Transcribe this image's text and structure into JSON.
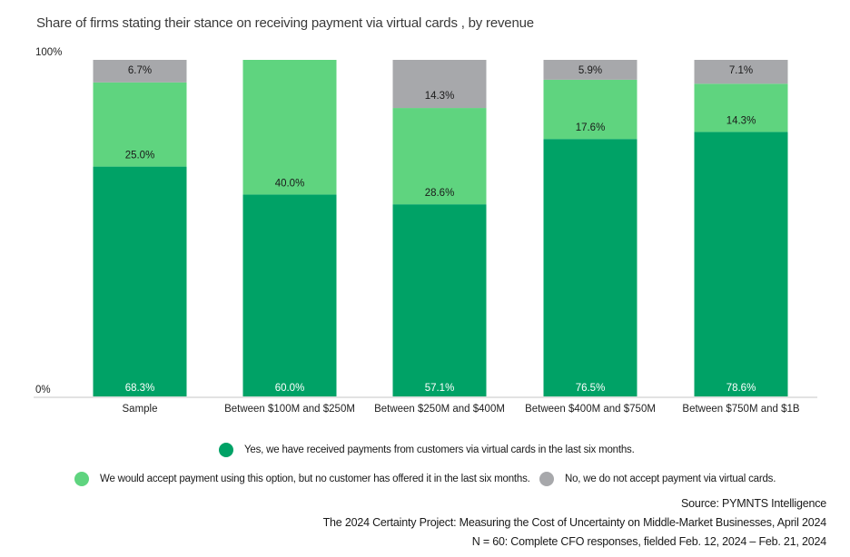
{
  "chart_data": {
    "type": "bar",
    "stacked": true,
    "title": "Share of firms stating their stance on receiving payment via virtual cards , by revenue",
    "xlabel": "",
    "ylabel": "",
    "ylim": [
      0,
      100
    ],
    "ytick_labels": [
      "0%",
      "100%"
    ],
    "grid": false,
    "legend_position": "bottom",
    "categories": [
      "Sample",
      "Between $100M and $250M",
      "Between $250M and $400M",
      "Between $400M and $750M",
      "Between $750M and $1B"
    ],
    "series": [
      {
        "name": "Yes, we have received payments from customers via virtual cards in the last six months.",
        "color": "#00a266",
        "values": [
          68.3,
          60.0,
          57.1,
          76.5,
          78.6
        ],
        "labels": [
          "68.3%",
          "60.0%",
          "57.1%",
          "76.5%",
          "78.6%"
        ]
      },
      {
        "name": "We would accept payment using this option, but no customer has offered it in the last six months.",
        "color": "#5fd47f",
        "values": [
          25.0,
          40.0,
          28.6,
          17.6,
          14.3
        ],
        "labels": [
          "25.0%",
          "40.0%",
          "28.6%",
          "17.6%",
          "14.3%"
        ]
      },
      {
        "name": "No, we do not accept payment via virtual cards.",
        "color": "#a7a8ab",
        "values": [
          6.7,
          0,
          14.3,
          5.9,
          7.1
        ],
        "labels": [
          "6.7%",
          "",
          "14.3%",
          "5.9%",
          "7.1%"
        ]
      }
    ]
  },
  "footer": {
    "source_lines": [
      "Source: PYMNTS Intelligence",
      "The 2024 Certainty Project: Measuring the Cost of Uncertainty on Middle-Market Businesses, April 2024",
      "N = 60: Complete CFO responses, fielded Feb. 12, 2024 – Feb. 21, 2024"
    ]
  }
}
